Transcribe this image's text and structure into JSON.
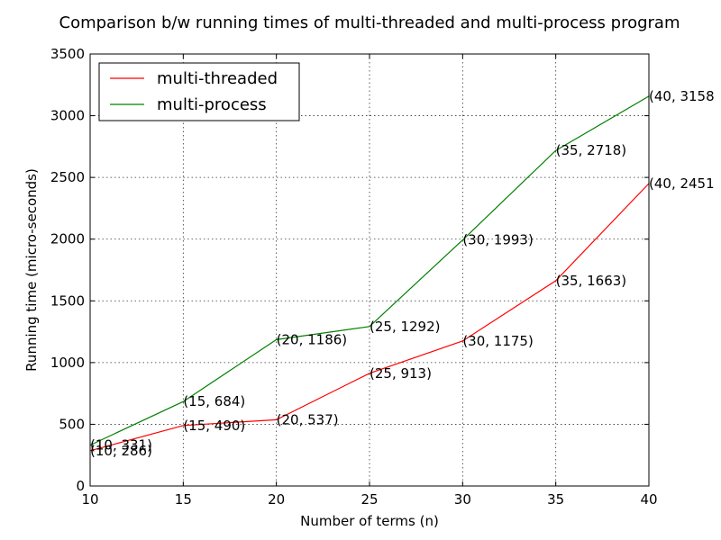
{
  "chart_data": {
    "type": "line",
    "title": "Comparison b/w running times of multi-threaded and multi-process program",
    "xlabel": "Number of terms (n)",
    "ylabel": "Running time (micro-seconds)",
    "xlim": [
      10,
      40
    ],
    "ylim": [
      0,
      3500
    ],
    "xticks": [
      10,
      15,
      20,
      25,
      30,
      35,
      40
    ],
    "yticks": [
      0,
      500,
      1000,
      1500,
      2000,
      2500,
      3000,
      3500
    ],
    "grid": true,
    "legend_position": "top-left",
    "x": [
      10,
      15,
      20,
      25,
      30,
      35,
      40
    ],
    "series": [
      {
        "name": "multi-threaded",
        "color": "#ff0000",
        "values": [
          286,
          490,
          537,
          913,
          1175,
          1663,
          2451
        ],
        "labels": [
          "(10, 286)",
          "(15, 490)",
          "(20, 537)",
          "(25, 913)",
          "(30, 1175)",
          "(35, 1663)",
          "(40, 2451"
        ]
      },
      {
        "name": "multi-process",
        "color": "#008000",
        "values": [
          331,
          684,
          1186,
          1292,
          1993,
          2718,
          3158
        ],
        "labels": [
          "(10, 331)",
          "(15, 684)",
          "(20, 1186)",
          "(25, 1292)",
          "(30, 1993)",
          "(35, 2718)",
          "(40, 3158"
        ]
      }
    ]
  }
}
